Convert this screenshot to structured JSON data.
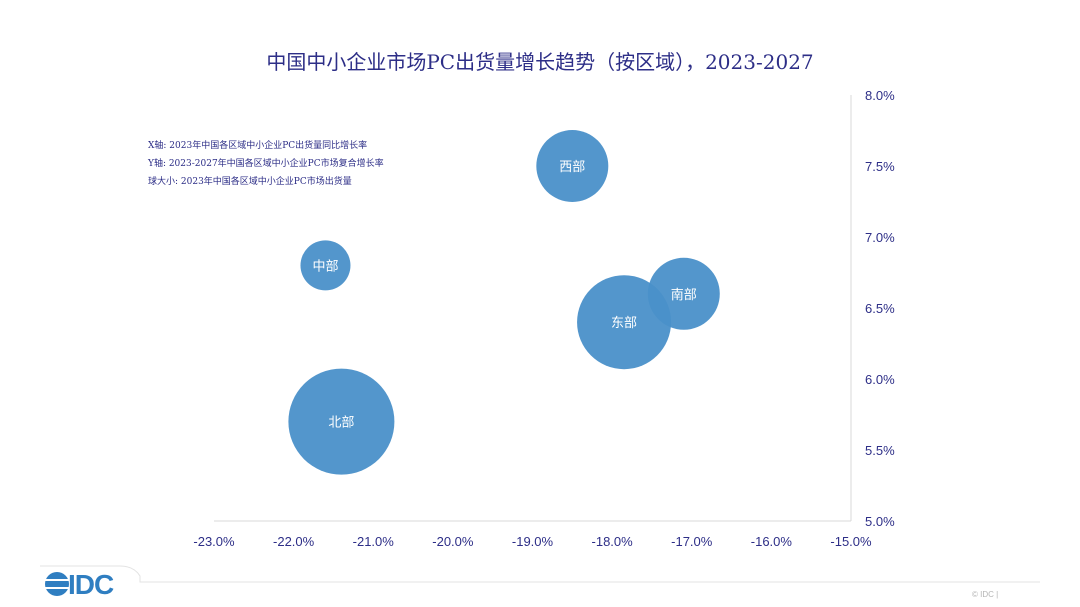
{
  "chart_data": {
    "type": "bubble",
    "title": "中国中小企业市场PC出货量增长趋势（按区域），2023-2027",
    "xlabel": "X轴: 2023年中国各区域中小企业PC出货量同比增长率",
    "ylabel": "Y轴: 2023-2027年中国各区域中小企业PC市场复合增长率",
    "size_label": "球大小: 2023年中国各区域中小企业PC市场出货量",
    "xlim": [
      -23.0,
      -15.0
    ],
    "ylim": [
      5.0,
      8.0
    ],
    "x_ticks": [
      "-23.0%",
      "-22.0%",
      "-21.0%",
      "-20.0%",
      "-19.0%",
      "-18.0%",
      "-17.0%",
      "-16.0%",
      "-15.0%"
    ],
    "y_ticks": [
      "8.0%",
      "7.5%",
      "7.0%",
      "6.5%",
      "6.0%",
      "5.5%",
      "5.0%"
    ],
    "bubble_color": "#4a90c9",
    "series": [
      {
        "name": "西部",
        "x": -18.5,
        "y": 7.5,
        "size": 36
      },
      {
        "name": "中部",
        "x": -21.6,
        "y": 6.8,
        "size": 25
      },
      {
        "name": "南部",
        "x": -17.1,
        "y": 6.6,
        "size": 36
      },
      {
        "name": "东部",
        "x": -17.85,
        "y": 6.4,
        "size": 47
      },
      {
        "name": "北部",
        "x": -21.4,
        "y": 5.7,
        "size": 53
      }
    ]
  },
  "footer": {
    "logo": "IDC",
    "copyright": "© IDC |"
  }
}
